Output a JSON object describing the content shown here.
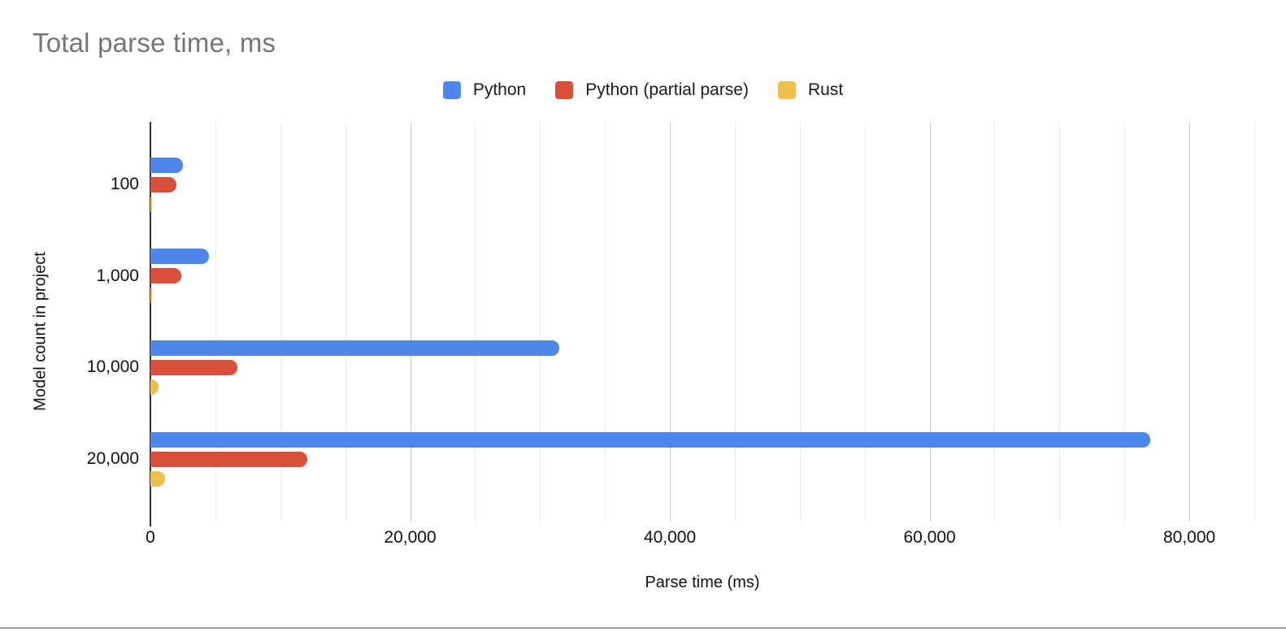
{
  "title": "Total parse time, ms",
  "axes": {
    "x_title": "Parse time (ms)",
    "y_title": "Model count in project"
  },
  "chart_data": {
    "type": "bar",
    "orientation": "horizontal",
    "title": "Total parse time, ms",
    "xlabel": "Parse time (ms)",
    "ylabel": "Model count in project",
    "categories": [
      "100",
      "1,000",
      "10,000",
      "20,000"
    ],
    "series": [
      {
        "name": "Python",
        "color": "#4f86ec",
        "values": [
          2500,
          4500,
          31500,
          77000
        ]
      },
      {
        "name": "Python (partial parse)",
        "color": "#d8503c",
        "values": [
          2000,
          2400,
          6700,
          12100
        ]
      },
      {
        "name": "Rust",
        "color": "#f0bf4b",
        "values": [
          100,
          130,
          600,
          1100
        ]
      }
    ],
    "xlim": [
      0,
      85000
    ],
    "x_ticks": [
      0,
      20000,
      40000,
      60000,
      80000
    ],
    "x_tick_labels": [
      "0",
      "20,000",
      "40,000",
      "60,000",
      "80,000"
    ],
    "minor_gridline_step": 5000,
    "major_gridline_step": 20000,
    "grid": true,
    "legend_position": "top"
  },
  "colors": {
    "title_text": "#757575",
    "axis_line": "#2f2f2f",
    "minor_gridline": "#e9e9e9",
    "major_gridline": "#c9c9c9",
    "label_text": "#111111",
    "bottom_rule": "#9e9e9e"
  }
}
